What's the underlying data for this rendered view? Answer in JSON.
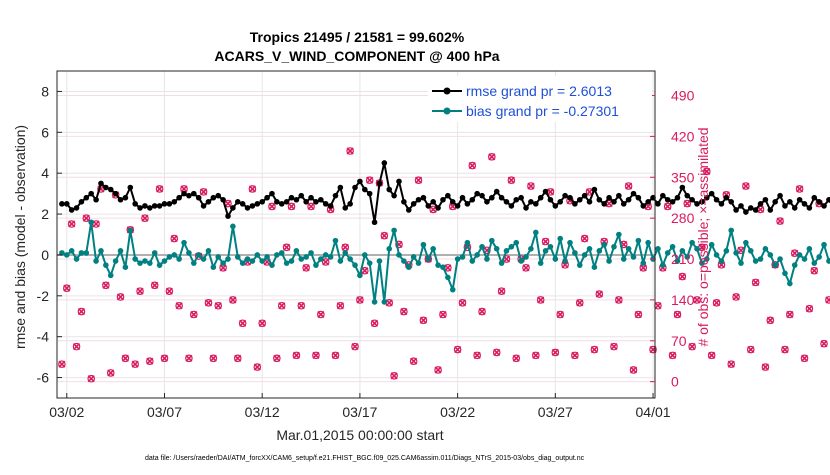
{
  "chart_data": {
    "type": "line",
    "title_line1": "Tropics 21495 / 21581 = 99.602%",
    "title_line2": "ACARS_V_WIND_COMPONENT @ 400 hPa",
    "xlabel": "Mar.01,2015 00:00:00 start",
    "ylabel_left": "rmse and bias (model - observation)",
    "ylabel_right": "# of obs: o=possible; ×=assimilated",
    "footnote": "data file: /Users/raeder/DAI/ATM_forcXX/CAM6_setup/f.e21.FHIST_BGC.f09_025.CAM6assim.011/Diags_NTrS_2015-03/obs_diag_output.nc",
    "x_ticks": [
      {
        "day": 1.5,
        "label": "03/02"
      },
      {
        "day": 6.5,
        "label": "03/07"
      },
      {
        "day": 11.5,
        "label": "03/12"
      },
      {
        "day": 16.5,
        "label": "03/17"
      },
      {
        "day": 21.5,
        "label": "03/22"
      },
      {
        "day": 26.5,
        "label": "03/27"
      },
      {
        "day": 31.5,
        "label": "04/01"
      }
    ],
    "y_left_ticks": [
      -6,
      -4,
      -2,
      0,
      2,
      4,
      6,
      8
    ],
    "y_right_ticks": [
      0,
      70,
      140,
      210,
      280,
      350,
      420,
      490
    ],
    "xlim": [
      1.0,
      31.6
    ],
    "ylim_left": [
      -7.0,
      9.0
    ],
    "ylim_right": [
      -28,
      532
    ],
    "grid": true,
    "legend_position": "top-right",
    "zero_line": 0,
    "series": [
      {
        "name": "rmse grand pr = 2.6013",
        "axis": "left",
        "color": "#000000",
        "start_day": 1.25,
        "step_days": 0.25,
        "values": [
          2.5,
          2.5,
          2.2,
          2.3,
          2.6,
          2.8,
          3.0,
          2.7,
          3.5,
          3.3,
          3.2,
          3.0,
          2.7,
          2.8,
          3.3,
          2.5,
          2.3,
          2.4,
          2.3,
          2.4,
          2.4,
          2.5,
          2.5,
          2.6,
          2.8,
          3.0,
          2.9,
          3.0,
          2.8,
          2.4,
          2.6,
          2.8,
          2.9,
          2.7,
          1.9,
          2.3,
          2.6,
          2.5,
          2.3,
          2.4,
          2.5,
          2.6,
          2.8,
          3.0,
          2.6,
          2.5,
          2.6,
          2.8,
          2.7,
          2.9,
          2.6,
          2.8,
          2.6,
          2.7,
          2.5,
          2.4,
          2.9,
          3.3,
          2.3,
          2.5,
          3.3,
          3.6,
          3.2,
          3.0,
          1.6,
          3.5,
          4.5,
          3.2,
          2.9,
          3.6,
          2.6,
          2.2,
          2.5,
          2.7,
          2.8,
          2.4,
          2.6,
          2.3,
          2.7,
          2.9,
          2.6,
          2.4,
          2.8,
          2.5,
          2.7,
          3.0,
          2.9,
          2.6,
          2.8,
          3.1,
          2.8,
          2.6,
          2.4,
          2.7,
          2.8,
          2.3,
          2.6,
          2.5,
          2.8,
          3.1,
          2.7,
          2.4,
          2.6,
          2.9,
          2.8,
          2.5,
          2.7,
          2.9,
          2.6,
          3.2,
          2.7,
          2.5,
          2.8,
          2.6,
          2.9,
          2.5,
          2.7,
          3.0,
          2.8,
          2.4,
          2.6,
          2.8,
          2.5,
          2.9,
          2.7,
          2.6,
          2.8,
          3.3,
          2.9,
          2.7,
          2.5,
          2.6,
          2.8,
          3.0,
          2.7,
          2.5,
          2.8,
          2.6,
          2.2,
          2.4,
          2.1,
          2.3,
          2.2,
          2.5,
          2.7,
          2.2,
          2.6,
          2.9,
          2.4,
          2.6,
          2.3,
          2.7,
          2.5,
          2.3,
          2.8,
          2.6,
          2.4,
          2.7,
          2.3,
          2.6,
          2.9,
          2.7,
          2.8,
          2.5,
          2.6,
          2.4,
          2.7,
          3.1,
          2.8,
          2.5,
          2.3,
          2.7,
          2.4,
          2.6,
          2.8,
          2.9,
          3.0,
          2.3,
          2.5,
          2.6,
          2.7,
          2.9,
          3.2,
          2.8,
          2.6,
          2.4,
          2.7,
          2.2,
          2.5,
          2.9,
          3.1,
          2.6,
          2.8,
          2.5,
          3.2,
          3.6,
          3.3,
          2.6
        ]
      },
      {
        "name": "bias grand pr = -0.27301",
        "axis": "left",
        "color": "#008080",
        "start_day": 1.25,
        "step_days": 0.25,
        "values": [
          0.1,
          0.0,
          0.2,
          -0.2,
          0.1,
          0.1,
          1.6,
          -0.3,
          0.2,
          -0.5,
          -1.0,
          -0.3,
          0.2,
          -0.6,
          1.2,
          -0.2,
          -0.4,
          -0.3,
          -0.4,
          0.1,
          -0.5,
          -0.3,
          -0.1,
          0.0,
          -0.2,
          0.6,
          0.1,
          -0.4,
          0.0,
          -0.2,
          0.2,
          -0.6,
          -0.1,
          -0.4,
          -0.2,
          1.4,
          -0.1,
          -0.4,
          -0.2,
          -0.3,
          0.0,
          -0.3,
          -0.1,
          -0.5,
          0.0,
          0.1,
          -0.4,
          -0.3,
          0.2,
          -0.2,
          -0.1,
          0.1,
          -0.5,
          -0.2,
          0.0,
          -0.1,
          0.7,
          -0.3,
          0.1,
          -0.2,
          -0.5,
          -1.0,
          0.0,
          -0.4,
          -2.3,
          -0.3,
          -2.3,
          0.3,
          1.2,
          0.0,
          -0.3,
          -0.6,
          -0.1,
          -0.4,
          0.5,
          -0.2,
          0.3,
          -0.5,
          -0.6,
          -1.1,
          -1.7,
          -0.2,
          -0.1,
          0.6,
          -0.3,
          0.0,
          0.4,
          -0.2,
          0.7,
          0.3,
          -0.4,
          0.2,
          0.4,
          0.6,
          -0.3,
          -0.1,
          0.3,
          1.1,
          -0.4,
          0.2,
          0.4,
          -0.2,
          0.8,
          -0.3,
          0.6,
          0.1,
          -0.5,
          0.0,
          0.3,
          -0.6,
          0.2,
          0.5,
          -0.3,
          0.4,
          1.0,
          -0.2,
          0.3,
          -0.1,
          0.7,
          -0.4,
          0.6,
          -0.2,
          0.3,
          -0.5,
          0.1,
          0.4,
          -0.3,
          0.2,
          -0.1,
          0.6,
          0.3,
          -0.4,
          -0.2,
          0.5,
          0.0,
          -0.3,
          0.2,
          1.2,
          0.1,
          -0.4,
          0.6,
          0.2,
          -0.3,
          -0.2,
          0.3,
          0.0,
          -0.5,
          -0.2,
          -0.9,
          -1.4,
          -0.5,
          0.0,
          -0.2,
          0.3,
          -0.4,
          -0.1,
          0.5,
          -0.3,
          0.1,
          -0.2,
          -0.4,
          0.2,
          0.0,
          -0.5,
          0.3,
          -0.2,
          -0.7,
          0.0,
          -0.4,
          0.1,
          -0.3,
          -0.6,
          0.3,
          -0.4,
          -0.1,
          0.2,
          -0.5,
          -0.3,
          -0.1,
          -0.6,
          -0.2,
          0.1,
          -1.0,
          -1.6,
          -0.3,
          -0.6,
          0.0,
          -0.4,
          0.3,
          0.0,
          -0.5,
          -0.2,
          0.6,
          0.5,
          0.4,
          -0.3,
          0.1,
          -0.3,
          -0.3,
          -0.2
        ]
      },
      {
        "name": "obs possible",
        "axis": "right",
        "color": "#d81b60",
        "marker": "o",
        "start_day": 1.25,
        "step_days": 0.25,
        "values": [
          30,
          160,
          270,
          60,
          120,
          280,
          5,
          270,
          330,
          165,
          15,
          320,
          145,
          40,
          260,
          30,
          155,
          280,
          35,
          165,
          330,
          40,
          155,
          245,
          130,
          330,
          40,
          115,
          215,
          325,
          135,
          40,
          130,
          195,
          305,
          140,
          40,
          100,
          205,
          330,
          25,
          100,
          205,
          300,
          40,
          130,
          230,
          300,
          45,
          130,
          195,
          300,
          45,
          115,
          205,
          295,
          45,
          130,
          230,
          395,
          60,
          140,
          190,
          345,
          100,
          340,
          250,
          135,
          10,
          235,
          120,
          200,
          35,
          345,
          105,
          210,
          295,
          20,
          115,
          195,
          300,
          55,
          135,
          230,
          370,
          45,
          120,
          225,
          385,
          50,
          155,
          210,
          345,
          40,
          210,
          195,
          335,
          45,
          140,
          240,
          325,
          50,
          115,
          200,
          310,
          45,
          135,
          245,
          325,
          55,
          150,
          240,
          305,
          60,
          140,
          235,
          335,
          20,
          115,
          195,
          300,
          55,
          130,
          195,
          300,
          45,
          115,
          180,
          305,
          60,
          140,
          230,
          360,
          45,
          135,
          200,
          320,
          30,
          145,
          225,
          335,
          55,
          170,
          295,
          25,
          105,
          200,
          275,
          55,
          115,
          220,
          330,
          40,
          125,
          190,
          305,
          65,
          140,
          230,
          330,
          50,
          135,
          230,
          345,
          45,
          155,
          215,
          305,
          40,
          125,
          195,
          290,
          40,
          130,
          215,
          305,
          20,
          95,
          185,
          300,
          40,
          115,
          185,
          290,
          50,
          135,
          185,
          305,
          60,
          135,
          200,
          330,
          35,
          135,
          215,
          330,
          0
        ]
      },
      {
        "name": "obs assimilated",
        "axis": "right",
        "color": "#d81b60",
        "marker": "x",
        "start_day": 1.25,
        "step_days": 0.25,
        "values": [
          30,
          160,
          270,
          60,
          120,
          280,
          5,
          270,
          330,
          165,
          15,
          320,
          145,
          40,
          260,
          30,
          155,
          280,
          35,
          165,
          330,
          40,
          155,
          245,
          130,
          330,
          40,
          115,
          215,
          325,
          135,
          40,
          130,
          195,
          305,
          140,
          40,
          100,
          205,
          330,
          25,
          100,
          205,
          300,
          40,
          130,
          230,
          300,
          45,
          130,
          195,
          300,
          45,
          115,
          205,
          295,
          45,
          130,
          230,
          395,
          60,
          140,
          190,
          345,
          100,
          340,
          250,
          135,
          10,
          235,
          120,
          200,
          35,
          345,
          105,
          210,
          295,
          20,
          115,
          195,
          300,
          55,
          135,
          230,
          370,
          45,
          120,
          225,
          385,
          50,
          155,
          210,
          345,
          40,
          210,
          195,
          335,
          45,
          140,
          240,
          325,
          50,
          115,
          200,
          310,
          45,
          135,
          245,
          325,
          55,
          150,
          240,
          305,
          60,
          140,
          235,
          335,
          20,
          115,
          195,
          300,
          55,
          130,
          195,
          300,
          45,
          115,
          180,
          305,
          60,
          140,
          230,
          360,
          45,
          135,
          200,
          320,
          30,
          145,
          225,
          335,
          55,
          170,
          295,
          25,
          105,
          200,
          275,
          55,
          115,
          220,
          330,
          40,
          125,
          190,
          305,
          65,
          140,
          230,
          330,
          50,
          135,
          230,
          345,
          45,
          155,
          215,
          305,
          40,
          125,
          195,
          290,
          40,
          130,
          215,
          305,
          20,
          95,
          185,
          300,
          40,
          115,
          185,
          290,
          50,
          135,
          185,
          305,
          60,
          135,
          200,
          330,
          35,
          135,
          215,
          330,
          0
        ]
      }
    ]
  }
}
